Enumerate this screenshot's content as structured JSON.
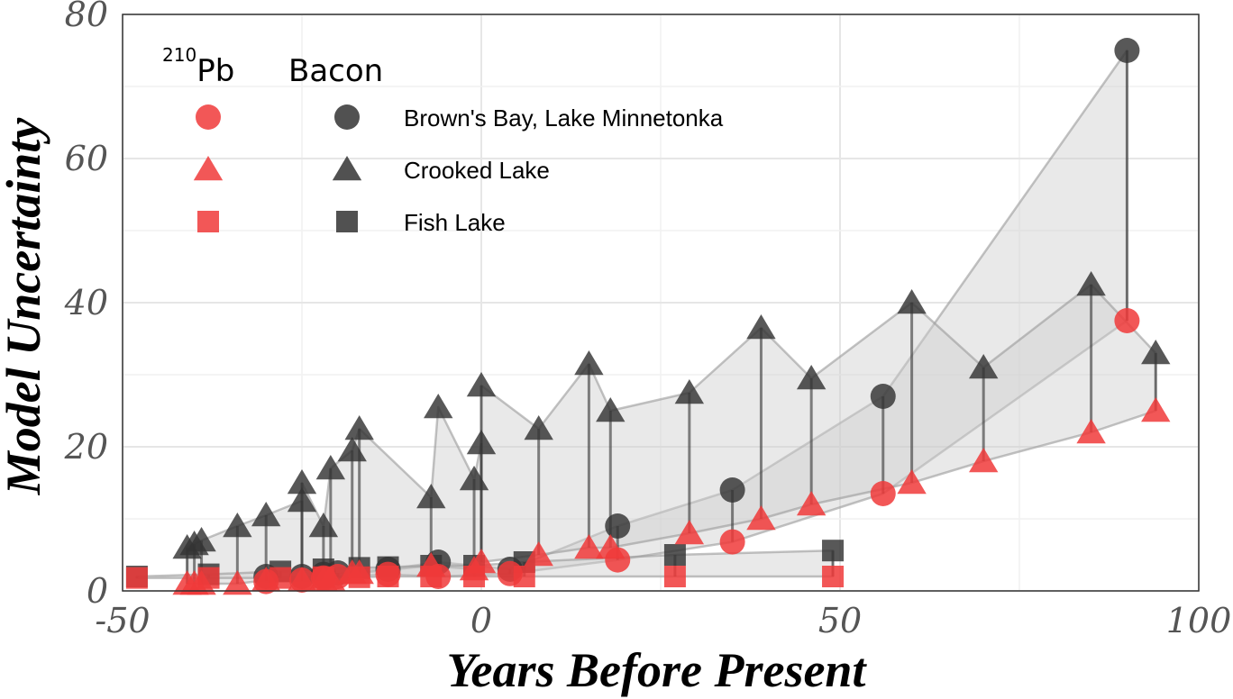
{
  "chart_data": {
    "type": "scatter",
    "xlabel": "Years Before Present",
    "ylabel": "Model Uncertainty",
    "xlim": [
      -50,
      100
    ],
    "ylim": [
      0,
      80
    ],
    "x_ticks": [
      "-50",
      "0",
      "50",
      "100"
    ],
    "y_ticks": [
      "0",
      "20",
      "40",
      "60",
      "80"
    ],
    "x_tick_values": [
      -50,
      0,
      50,
      100
    ],
    "y_tick_values": [
      0,
      20,
      40,
      60,
      80
    ],
    "grid": true,
    "legend": {
      "position": "top-left",
      "header_method1_sup": "210",
      "header_method1": "Pb",
      "header_method2": "Bacon",
      "entries": [
        {
          "label": "Brown's Bay, Lake Minnetonka",
          "shape": "circle"
        },
        {
          "label": "Crooked Lake",
          "shape": "triangle"
        },
        {
          "label": "Fish Lake",
          "shape": "square"
        }
      ]
    },
    "colors": {
      "pb210": "#f03a3a",
      "bacon": "#333333",
      "ribbon": "#d9d9d9",
      "connector": "#333333"
    },
    "series": [
      {
        "name": "Brown's Bay, Lake Minnetonka",
        "method": "210Pb",
        "shape": "circle",
        "x": [
          -30,
          -25,
          -22,
          -20,
          -13,
          -6,
          4,
          19,
          35,
          56,
          90
        ],
        "y": [
          1.3,
          1.5,
          1.8,
          2.0,
          2.3,
          2.0,
          2.4,
          4.3,
          6.8,
          13.5,
          37.5
        ]
      },
      {
        "name": "Brown's Bay, Lake Minnetonka",
        "method": "Bacon",
        "shape": "circle",
        "x": [
          -30,
          -25,
          -22,
          -20,
          -13,
          -6,
          4,
          19,
          35,
          56,
          90
        ],
        "y": [
          2.0,
          2.0,
          2.3,
          2.5,
          3.0,
          4.0,
          3.0,
          9.0,
          14.0,
          27.0,
          75.0
        ]
      },
      {
        "name": "Crooked Lake",
        "method": "210Pb",
        "shape": "triangle",
        "x": [
          -41,
          -40,
          -39,
          -34,
          -30,
          -25,
          -22,
          -21,
          -18,
          -17,
          -7,
          -1,
          0,
          8,
          15,
          18,
          29,
          39,
          46,
          60,
          70,
          85,
          94
        ],
        "y": [
          1.0,
          1.0,
          1.0,
          1.0,
          1.5,
          1.5,
          1.5,
          1.6,
          2.5,
          2.5,
          3.5,
          3.0,
          4.0,
          5.0,
          6.0,
          6.0,
          8.0,
          10.0,
          12.0,
          15.0,
          18.0,
          22.0,
          25.0
        ]
      },
      {
        "name": "Crooked Lake",
        "method": "Bacon",
        "shape": "triangle",
        "x": [
          -41,
          -40,
          -39,
          -34,
          -30,
          -25,
          -25,
          -22,
          -21,
          -18,
          -17,
          -7,
          -6,
          -1,
          0,
          0,
          8,
          15,
          18,
          29,
          39,
          46,
          60,
          70,
          85,
          94
        ],
        "y": [
          6.0,
          6.5,
          7.0,
          9.0,
          10.5,
          12.5,
          15.0,
          9.0,
          17.0,
          19.5,
          22.5,
          13.0,
          25.5,
          15.5,
          20.5,
          28.5,
          22.5,
          31.5,
          25.0,
          27.5,
          36.5,
          29.5,
          40.0,
          31.0,
          42.5,
          33.0
        ]
      },
      {
        "name": "Fish Lake",
        "method": "210Pb",
        "shape": "square",
        "x": [
          -48,
          -38,
          -28,
          -22,
          -17,
          -13,
          -7,
          -1,
          6,
          27,
          49
        ],
        "y": [
          1.8,
          1.8,
          1.8,
          1.9,
          1.9,
          2.0,
          2.0,
          2.0,
          2.0,
          2.0,
          2.0
        ]
      },
      {
        "name": "Fish Lake",
        "method": "Bacon",
        "shape": "square",
        "x": [
          -48,
          -38,
          -28,
          -22,
          -17,
          -13,
          -7,
          -1,
          6,
          27,
          49
        ],
        "y": [
          2.0,
          2.3,
          2.7,
          3.0,
          3.2,
          3.3,
          3.5,
          3.5,
          4.0,
          5.0,
          5.6
        ]
      }
    ]
  }
}
